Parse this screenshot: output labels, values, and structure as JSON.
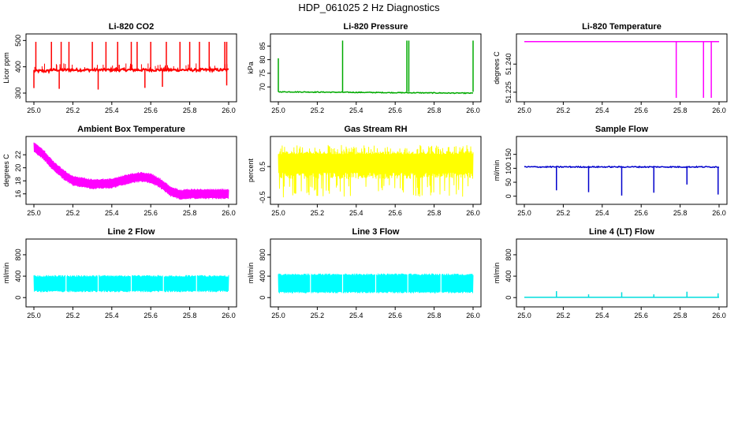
{
  "figure": {
    "title": "HDP_061025  2 Hz Diagnostics"
  },
  "chart_data": [
    {
      "type": "line",
      "title": "Li-820 CO2",
      "xlabel": "",
      "ylabel": "Licor ppm",
      "xlim": [
        25.0,
        26.0
      ],
      "ylim": [
        282,
        510
      ],
      "xticks": [
        "25.0",
        "25.2",
        "25.4",
        "25.6",
        "25.8",
        "26.0"
      ],
      "yticks": [
        "300",
        "400",
        "500"
      ],
      "series": [
        {
          "name": "CO2",
          "color": "#ff0000",
          "baseline": 388,
          "noise": 5,
          "spikes_up": [
            25.01,
            25.09,
            25.14,
            25.18,
            25.3,
            25.37,
            25.43,
            25.5,
            25.53,
            25.6,
            25.68,
            25.75,
            25.8,
            25.85,
            25.9,
            25.98,
            25.99
          ],
          "spike_up_to": 495,
          "spikes_down": [
            25.0,
            25.13,
            25.33,
            25.57,
            25.66,
            25.99
          ],
          "spike_down_to": 310
        }
      ]
    },
    {
      "type": "line",
      "title": "Li-820 Pressure",
      "xlabel": "",
      "ylabel": "kPa",
      "xlim": [
        25.0,
        26.0
      ],
      "ylim": [
        66,
        88
      ],
      "xticks": [
        "25.0",
        "25.2",
        "25.4",
        "25.6",
        "25.8",
        "26.0"
      ],
      "yticks": [
        "70",
        "75",
        "80",
        "85"
      ],
      "series": [
        {
          "name": "Pressure",
          "color": "#00aa00",
          "start": 68.2,
          "end": 67.7,
          "noise": 0.15,
          "spikes": [
            [
              25.0,
              80.5
            ],
            [
              25.33,
              87
            ],
            [
              25.66,
              87
            ],
            [
              25.67,
              87
            ],
            [
              26.0,
              87
            ]
          ]
        }
      ]
    },
    {
      "type": "line",
      "title": "Li-820 Temperature",
      "xlabel": "",
      "ylabel": "degrees C",
      "xlim": [
        25.0,
        26.0
      ],
      "ylim": [
        51.222,
        51.254
      ],
      "xticks": [
        "25.0",
        "25.2",
        "25.4",
        "25.6",
        "25.8",
        "26.0"
      ],
      "yticks": [
        "51.225",
        "51.240"
      ],
      "series": [
        {
          "name": "Temperature",
          "color": "#ff00ff",
          "baseline": 51.252,
          "drops": [
            25.78,
            25.92,
            25.96
          ],
          "drop_to": 51.222
        }
      ]
    },
    {
      "type": "line",
      "title": "Ambient Box Temperature",
      "xlabel": "",
      "ylabel": "degrees C",
      "xlim": [
        25.0,
        26.0
      ],
      "ylim": [
        15,
        24.2
      ],
      "xticks": [
        "25.0",
        "25.2",
        "25.4",
        "25.6",
        "25.8",
        "26.0"
      ],
      "yticks": [
        "16",
        "18",
        "20",
        "22"
      ],
      "series": [
        {
          "name": "Box Temp",
          "color": "#ff00ff",
          "band": 0.6,
          "x": [
            25.0,
            25.05,
            25.1,
            25.15,
            25.2,
            25.3,
            25.4,
            25.45,
            25.5,
            25.55,
            25.6,
            25.65,
            25.7,
            25.75,
            25.8,
            25.9,
            26.0
          ],
          "y": [
            23.2,
            22.0,
            20.3,
            19.0,
            18.0,
            17.5,
            17.6,
            18.0,
            18.4,
            18.6,
            18.4,
            17.6,
            16.4,
            15.9,
            16.0,
            16.0,
            16.0
          ]
        }
      ]
    },
    {
      "type": "line",
      "title": "Gas Stream RH",
      "xlabel": "",
      "ylabel": "percent",
      "xlim": [
        25.0,
        26.0
      ],
      "ylim": [
        -0.6,
        1.35
      ],
      "xticks": [
        "25.0",
        "25.2",
        "25.4",
        "25.6",
        "25.8",
        "26.0"
      ],
      "yticks": [
        "-0.5",
        "0.5"
      ],
      "series": [
        {
          "name": "RH",
          "color": "#ffff00",
          "low": -0.5,
          "high": 1.2,
          "core_low": 0.1,
          "core_high": 1.0
        }
      ]
    },
    {
      "type": "line",
      "title": "Sample Flow",
      "xlabel": "",
      "ylabel": "ml/min",
      "xlim": [
        25.0,
        26.0
      ],
      "ylim": [
        -15,
        200
      ],
      "xticks": [
        "25.0",
        "25.2",
        "25.4",
        "25.6",
        "25.8",
        "26.0"
      ],
      "yticks": [
        "0",
        "50",
        "100",
        "150"
      ],
      "series": [
        {
          "name": "Sample Flow",
          "color": "#0000cc",
          "baseline": 105,
          "noise": 2,
          "drops": [
            [
              25.165,
              2
            ],
            [
              25.33,
              2
            ],
            [
              25.5,
              2
            ],
            [
              25.665,
              2
            ],
            [
              25.835,
              2
            ],
            [
              25.995,
              2
            ]
          ]
        }
      ]
    },
    {
      "type": "line",
      "title": "Line 2 Flow",
      "xlabel": "",
      "ylabel": "ml/min",
      "xlim": [
        25.0,
        26.0
      ],
      "ylim": [
        -100,
        1020
      ],
      "xticks": [
        "25.0",
        "25.2",
        "25.4",
        "25.6",
        "25.8",
        "26.0"
      ],
      "yticks": [
        "0",
        "400",
        "800"
      ],
      "series": [
        {
          "name": "Line 2",
          "color": "#00ffff",
          "low": 100,
          "high": 420,
          "gaps": [
            25.165,
            25.33,
            25.5,
            25.665,
            25.835
          ]
        }
      ]
    },
    {
      "type": "line",
      "title": "Line 3 Flow",
      "xlabel": "",
      "ylabel": "ml/min",
      "xlim": [
        25.0,
        26.0
      ],
      "ylim": [
        -100,
        1020
      ],
      "xticks": [
        "25.0",
        "25.2",
        "25.4",
        "25.6",
        "25.8",
        "26.0"
      ],
      "yticks": [
        "0",
        "400",
        "800"
      ],
      "series": [
        {
          "name": "Line 3",
          "color": "#00ffff",
          "low": 80,
          "high": 450,
          "gaps": [
            25.165,
            25.33,
            25.5,
            25.665,
            25.835
          ]
        }
      ]
    },
    {
      "type": "line",
      "title": "Line 4 (LT) Flow",
      "xlabel": "",
      "ylabel": "ml/min",
      "xlim": [
        25.0,
        26.0
      ],
      "ylim": [
        -100,
        1020
      ],
      "xticks": [
        "25.0",
        "25.2",
        "25.4",
        "25.6",
        "25.8",
        "26.0"
      ],
      "yticks": [
        "0",
        "400",
        "800"
      ],
      "series": [
        {
          "name": "Line 4",
          "color": "#00dddd",
          "baseline": 5,
          "spikes": [
            [
              25.165,
              120
            ],
            [
              25.33,
              60
            ],
            [
              25.5,
              100
            ],
            [
              25.665,
              60
            ],
            [
              25.835,
              110
            ],
            [
              25.995,
              80
            ]
          ]
        }
      ]
    }
  ]
}
